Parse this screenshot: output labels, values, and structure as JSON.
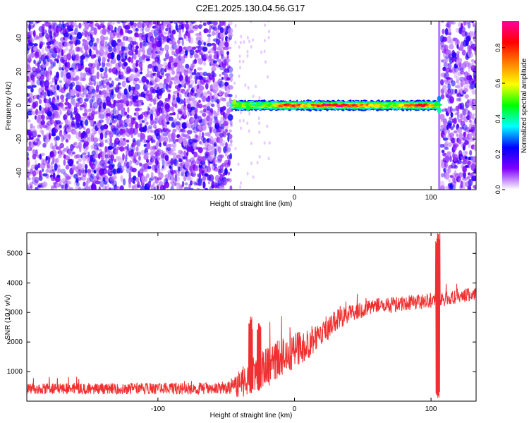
{
  "figure": {
    "title": "C2E1.2025.130.04.56.G17"
  },
  "chart_data": [
    {
      "type": "heatmap",
      "xlabel": "Height of straight line (km)",
      "ylabel": "Frequency (Hz)",
      "xlim": [
        -196,
        133
      ],
      "ylim": [
        -50,
        50
      ],
      "xticks": [
        -100,
        0,
        100
      ],
      "yticks": [
        -40,
        -20,
        0,
        20,
        40
      ],
      "colorbar": {
        "label": "Normalized spectral amplitude",
        "range": [
          0,
          0.95
        ],
        "ticks": [
          0.0,
          0.2,
          0.4,
          0.6,
          0.8
        ],
        "stops": [
          "#ffffff",
          "#8000ff",
          "#0000ff",
          "#00ffff",
          "#00ff00",
          "#ffff00",
          "#ff8000",
          "#ff0000",
          "#ff00a0"
        ]
      },
      "noise_left_to": -46,
      "noise_right_from": 108,
      "sparse_band": [
        -44,
        -20
      ],
      "signal_band": {
        "x_start": -46,
        "x_end": 106,
        "freq_center": 0,
        "freq_halfwidth": 3
      },
      "signal_strength": [
        {
          "x": -46,
          "v": 0.35
        },
        {
          "x": -40,
          "v": 0.55
        },
        {
          "x": -30,
          "v": 0.45
        },
        {
          "x": -20,
          "v": 0.5
        },
        {
          "x": -10,
          "v": 0.7
        },
        {
          "x": -5,
          "v": 0.85
        },
        {
          "x": 0,
          "v": 0.8
        },
        {
          "x": 10,
          "v": 0.6
        },
        {
          "x": 20,
          "v": 0.9
        },
        {
          "x": 30,
          "v": 0.9
        },
        {
          "x": 40,
          "v": 0.85
        },
        {
          "x": 50,
          "v": 0.75
        },
        {
          "x": 60,
          "v": 0.6
        },
        {
          "x": 70,
          "v": 0.5
        },
        {
          "x": 80,
          "v": 0.65
        },
        {
          "x": 90,
          "v": 0.85
        },
        {
          "x": 100,
          "v": 0.75
        },
        {
          "x": 106,
          "v": 0.4
        }
      ]
    },
    {
      "type": "line",
      "xlabel": "Height of straight line (km)",
      "ylabel": "SNR (10 * v/v)",
      "xlim": [
        -196,
        133
      ],
      "ylim": [
        0,
        5700
      ],
      "xticks": [
        -100,
        0,
        100
      ],
      "yticks": [
        1000,
        2000,
        3000,
        4000,
        5000
      ],
      "series": [
        {
          "color": "#f03030",
          "trend": [
            {
              "x": -196,
              "y": 420
            },
            {
              "x": -150,
              "y": 420
            },
            {
              "x": -100,
              "y": 420
            },
            {
              "x": -50,
              "y": 430
            },
            {
              "x": -36,
              "y": 700
            },
            {
              "x": -30,
              "y": 900
            },
            {
              "x": -20,
              "y": 1100
            },
            {
              "x": -10,
              "y": 1500
            },
            {
              "x": 0,
              "y": 1700
            },
            {
              "x": 10,
              "y": 1900
            },
            {
              "x": 20,
              "y": 2300
            },
            {
              "x": 30,
              "y": 2700
            },
            {
              "x": 40,
              "y": 2950
            },
            {
              "x": 50,
              "y": 3100
            },
            {
              "x": 60,
              "y": 3200
            },
            {
              "x": 70,
              "y": 3250
            },
            {
              "x": 80,
              "y": 3300
            },
            {
              "x": 90,
              "y": 3350
            },
            {
              "x": 100,
              "y": 3400
            },
            {
              "x": 110,
              "y": 3450
            },
            {
              "x": 120,
              "y": 3550
            },
            {
              "x": 133,
              "y": 3620
            }
          ],
          "noise": [
            {
              "x": -196,
              "amp": 180
            },
            {
              "x": -50,
              "amp": 200
            },
            {
              "x": -40,
              "amp": 500
            },
            {
              "x": -20,
              "amp": 700
            },
            {
              "x": 0,
              "amp": 600
            },
            {
              "x": 20,
              "amp": 500
            },
            {
              "x": 40,
              "amp": 280
            },
            {
              "x": 133,
              "amp": 230
            }
          ],
          "events": [
            {
              "x": -32,
              "y_max": 2900
            },
            {
              "x": -26,
              "y_max": 2650
            },
            {
              "x": 105,
              "y_min": 100,
              "y_max": 5700
            }
          ]
        }
      ]
    }
  ]
}
